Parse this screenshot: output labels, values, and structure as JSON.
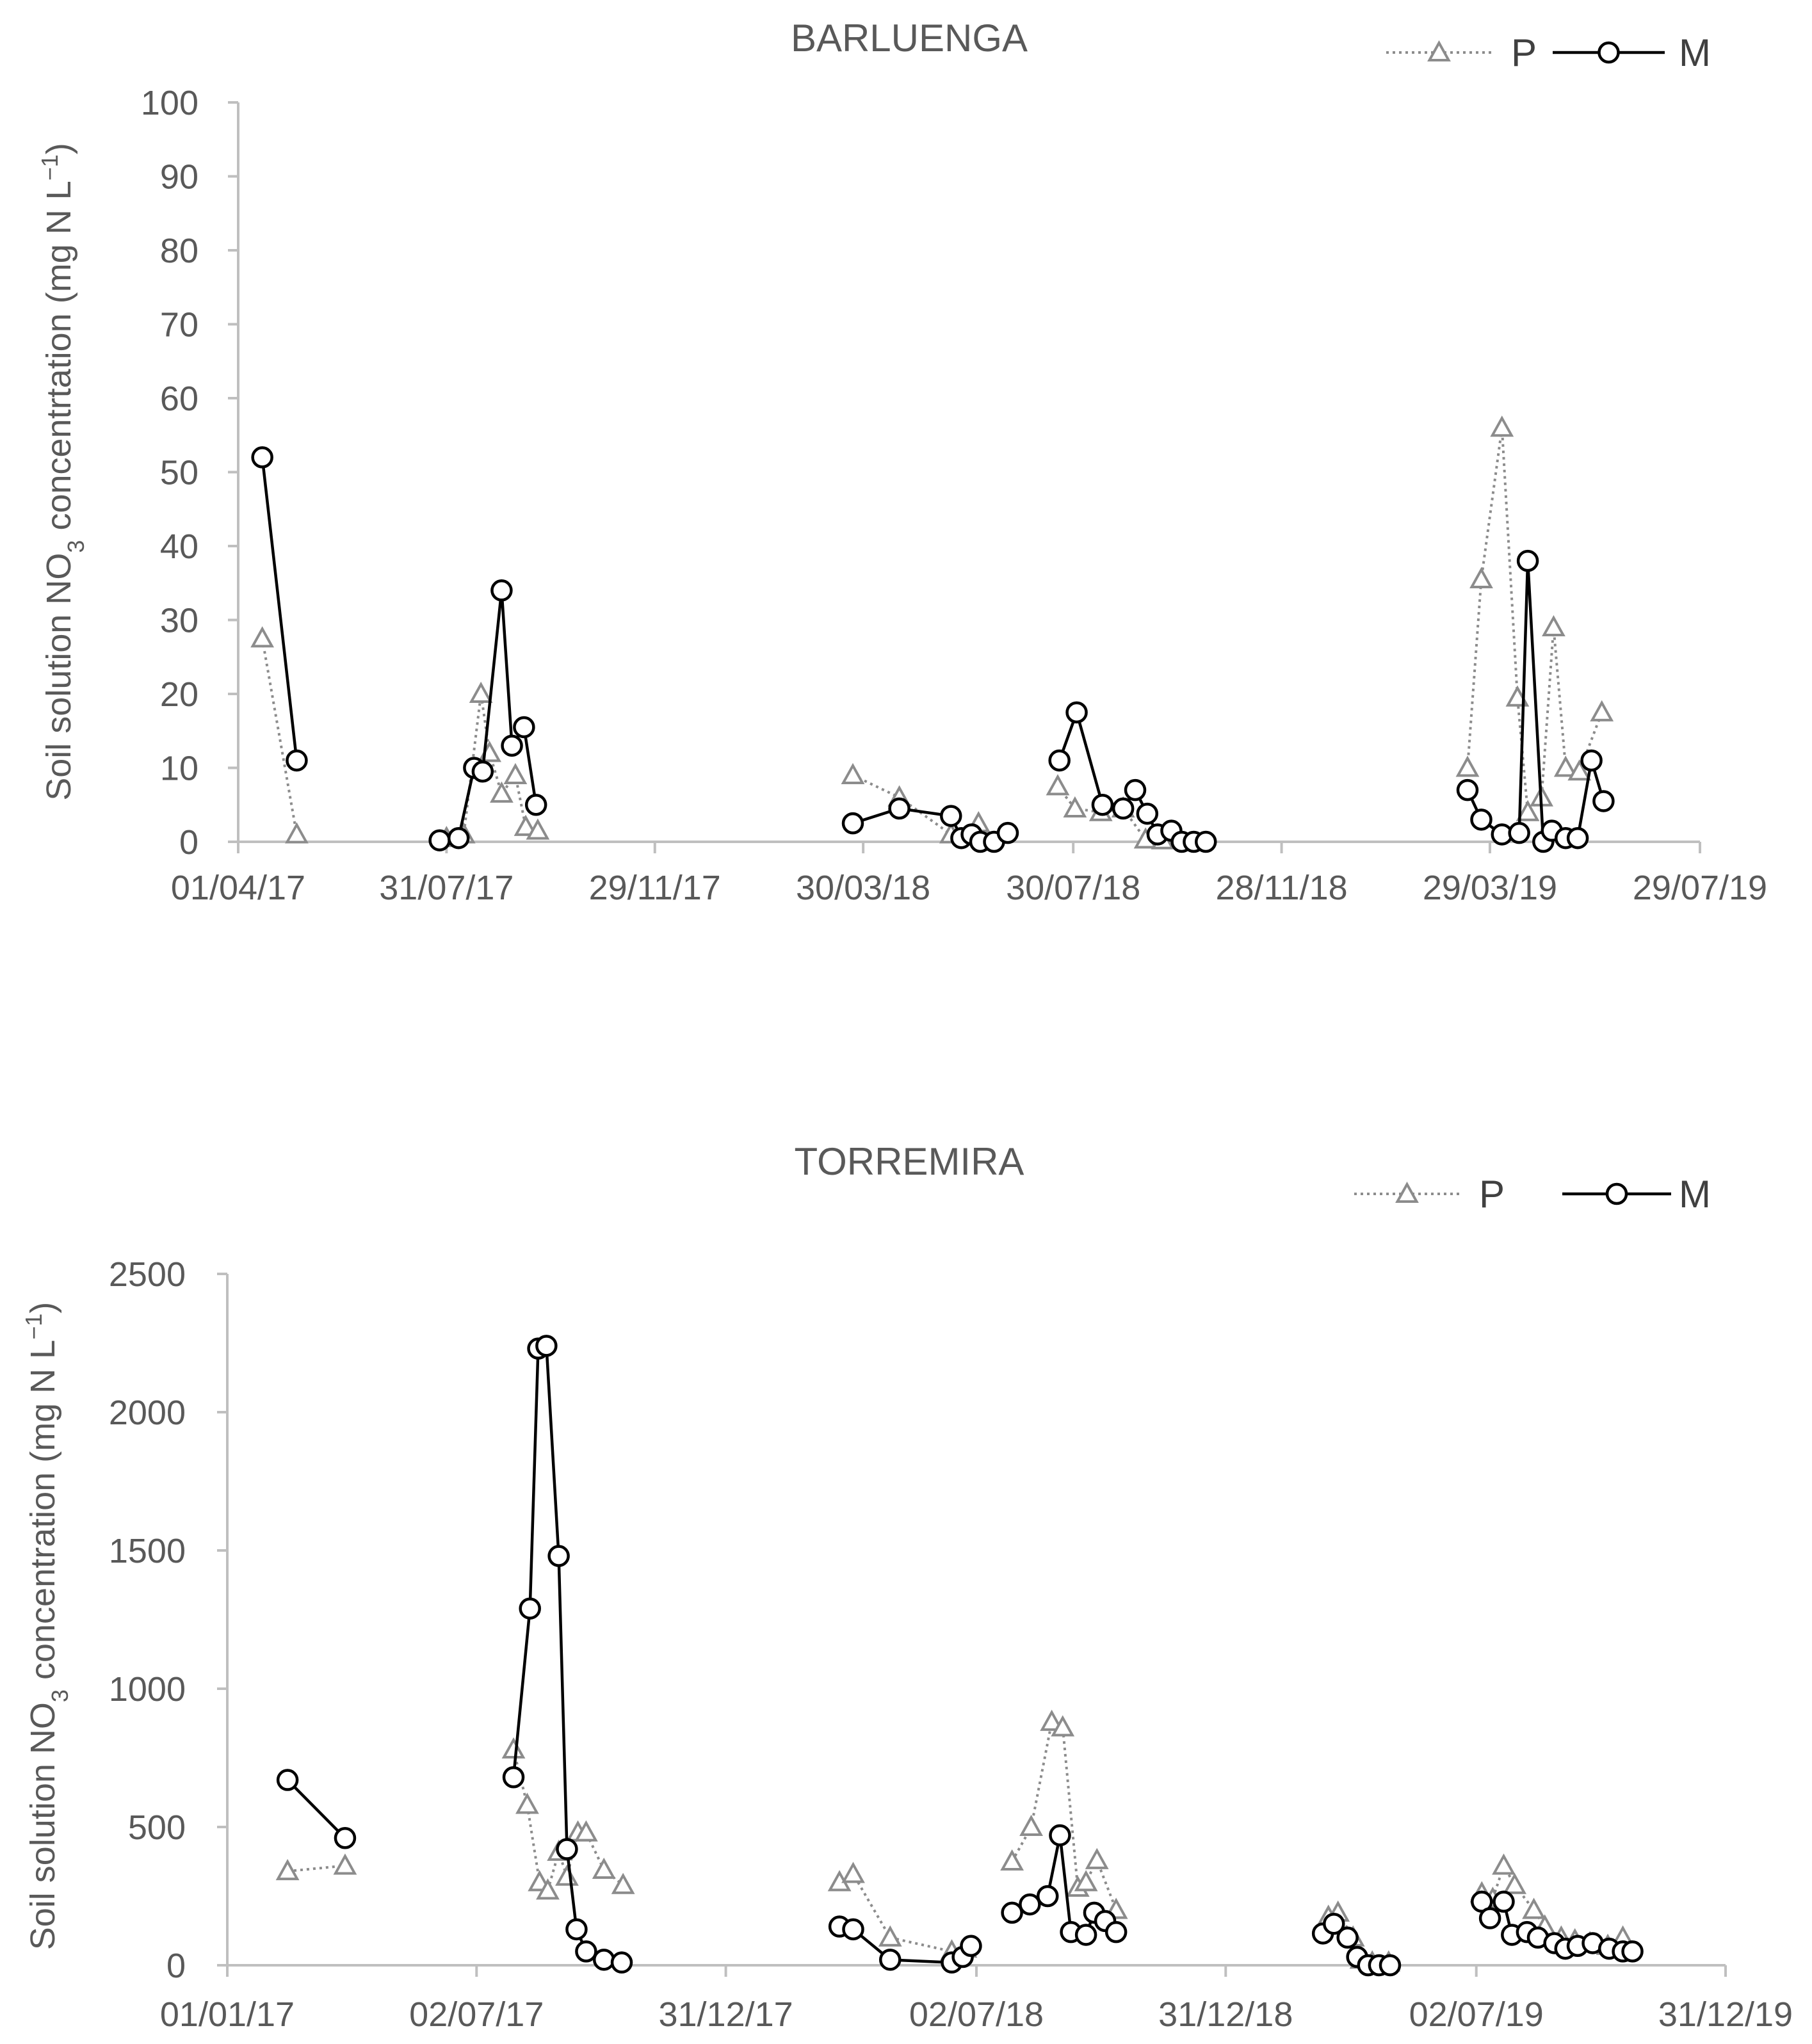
{
  "chart_data": [
    {
      "type": "line",
      "title": "BARLUENGA",
      "ylabel_parts": [
        "Soil solution NO",
        "3",
        " concentrtation (mg N L",
        "−1",
        ")"
      ],
      "ylim": [
        0,
        100
      ],
      "yticks": [
        0,
        10,
        20,
        30,
        40,
        50,
        60,
        70,
        80,
        90,
        100
      ],
      "xlim": [
        "2017-04-01",
        "2019-07-29"
      ],
      "xticks": [
        "2017-04-01",
        "2017-07-31",
        "2017-11-29",
        "2018-03-30",
        "2018-07-30",
        "2018-11-28",
        "2019-03-29",
        "2019-07-29"
      ],
      "xtick_labels": [
        "01/04/17",
        "31/07/17",
        "29/11/17",
        "30/03/18",
        "30/07/18",
        "28/11/18",
        "29/03/19",
        "29/07/19"
      ],
      "grid": false,
      "legend_position": "top-right",
      "series": [
        {
          "name": "P",
          "style": "dotted-triangle",
          "color": "#8c8c8c",
          "segments": [
            [
              [
                "2017-04-15",
                27.5
              ],
              [
                "2017-05-05",
                1
              ]
            ],
            [
              [
                "2017-07-31",
                0.5
              ],
              [
                "2017-08-10",
                1
              ],
              [
                "2017-08-20",
                20
              ],
              [
                "2017-08-25",
                12
              ],
              [
                "2017-09-01",
                6.5
              ],
              [
                "2017-09-09",
                9
              ],
              [
                "2017-09-15",
                2
              ],
              [
                "2017-09-22",
                1.5
              ]
            ],
            [
              [
                "2018-03-24",
                9
              ],
              [
                "2018-04-20",
                6
              ],
              [
                "2018-05-20",
                1
              ],
              [
                "2018-06-05",
                2.5
              ],
              [
                "2018-06-10",
                0
              ]
            ],
            [
              [
                "2018-07-21",
                7.5
              ],
              [
                "2018-07-31",
                4.5
              ],
              [
                "2018-08-15",
                4
              ],
              [
                "2018-08-28",
                4.5
              ],
              [
                "2018-09-10",
                0.3
              ],
              [
                "2018-09-20",
                0.2
              ]
            ],
            [
              [
                "2019-03-16",
                10
              ],
              [
                "2019-03-24",
                35.5
              ],
              [
                "2019-04-05",
                56
              ],
              [
                "2019-04-14",
                19.5
              ],
              [
                "2019-04-20",
                4
              ],
              [
                "2019-04-28",
                6
              ],
              [
                "2019-05-05",
                29
              ],
              [
                "2019-05-12",
                10
              ],
              [
                "2019-05-20",
                9.5
              ],
              [
                "2019-06-02",
                17.5
              ]
            ]
          ]
        },
        {
          "name": "M",
          "style": "solid-circle",
          "color": "#000000",
          "segments": [
            [
              [
                "2017-04-15",
                52
              ],
              [
                "2017-05-05",
                11
              ]
            ],
            [
              [
                "2017-07-27",
                0.2
              ],
              [
                "2017-08-07",
                0.5
              ],
              [
                "2017-08-16",
                10
              ],
              [
                "2017-08-21",
                9.5
              ],
              [
                "2017-09-01",
                34
              ],
              [
                "2017-09-07",
                13
              ],
              [
                "2017-09-14",
                15.5
              ],
              [
                "2017-09-21",
                5
              ]
            ],
            [
              [
                "2018-03-24",
                2.5
              ],
              [
                "2018-04-20",
                4.5
              ],
              [
                "2018-05-20",
                3.5
              ],
              [
                "2018-05-26",
                0.5
              ],
              [
                "2018-06-01",
                1
              ],
              [
                "2018-06-06",
                0
              ],
              [
                "2018-06-14",
                0
              ],
              [
                "2018-06-22",
                1.2
              ]
            ],
            [
              [
                "2018-07-22",
                11
              ],
              [
                "2018-08-01",
                17.5
              ],
              [
                "2018-08-16",
                5
              ],
              [
                "2018-08-28",
                4.5
              ],
              [
                "2018-09-04",
                7
              ],
              [
                "2018-09-11",
                3.8
              ],
              [
                "2018-09-17",
                1
              ],
              [
                "2018-09-25",
                1.5
              ],
              [
                "2018-10-01",
                0
              ],
              [
                "2018-10-08",
                0
              ],
              [
                "2018-10-15",
                0
              ]
            ],
            [
              [
                "2019-03-16",
                7
              ],
              [
                "2019-03-24",
                3
              ],
              [
                "2019-04-05",
                1
              ],
              [
                "2019-04-15",
                1.2
              ],
              [
                "2019-04-20",
                38
              ],
              [
                "2019-04-29",
                0
              ],
              [
                "2019-05-04",
                1.5
              ],
              [
                "2019-05-12",
                0.5
              ],
              [
                "2019-05-19",
                0.5
              ],
              [
                "2019-05-27",
                11
              ],
              [
                "2019-06-03",
                5.5
              ]
            ]
          ]
        }
      ]
    },
    {
      "type": "line",
      "title": "TORREMIRA",
      "ylabel_parts": [
        "Soil solution NO",
        "3",
        " concentration (mg N L",
        "−1",
        ")"
      ],
      "ylim": [
        0,
        2500
      ],
      "yticks": [
        0,
        500,
        1000,
        1500,
        2000,
        2500
      ],
      "xlim": [
        "2017-01-01",
        "2019-12-31"
      ],
      "xticks": [
        "2017-01-01",
        "2017-07-02",
        "2017-12-31",
        "2018-07-02",
        "2018-12-31",
        "2019-07-02",
        "2019-12-31"
      ],
      "xtick_labels": [
        "01/01/17",
        "02/07/17",
        "31/12/17",
        "02/07/18",
        "31/12/18",
        "02/07/19",
        "31/12/19"
      ],
      "grid": false,
      "legend_position": "top-right",
      "series": [
        {
          "name": "P",
          "style": "dotted-triangle",
          "color": "#8c8c8c",
          "segments": [
            [
              [
                "2017-02-14",
                340
              ],
              [
                "2017-03-28",
                360
              ]
            ],
            [
              [
                "2017-07-29",
                780
              ],
              [
                "2017-08-08",
                580
              ],
              [
                "2017-08-17",
                300
              ],
              [
                "2017-08-23",
                270
              ],
              [
                "2017-08-31",
                410
              ],
              [
                "2017-09-06",
                320
              ],
              [
                "2017-09-14",
                480
              ],
              [
                "2017-09-20",
                480
              ],
              [
                "2017-10-03",
                345
              ],
              [
                "2017-10-17",
                290
              ]
            ],
            [
              [
                "2018-03-24",
                300
              ],
              [
                "2018-04-03",
                330
              ],
              [
                "2018-04-30",
                100
              ],
              [
                "2018-06-14",
                50
              ],
              [
                "2018-06-24",
                60
              ]
            ],
            [
              [
                "2018-07-28",
                375
              ],
              [
                "2018-08-11",
                500
              ],
              [
                "2018-08-26",
                880
              ],
              [
                "2018-09-03",
                860
              ],
              [
                "2018-09-14",
                280
              ],
              [
                "2018-09-20",
                300
              ],
              [
                "2018-09-28",
                380
              ],
              [
                "2018-10-12",
                200
              ]
            ],
            [
              [
                "2019-03-16",
                175
              ],
              [
                "2019-03-23",
                190
              ],
              [
                "2019-04-03",
                100
              ],
              [
                "2019-04-09",
                20
              ],
              [
                "2019-04-17",
                10
              ],
              [
                "2019-04-29",
                10
              ]
            ],
            [
              [
                "2019-07-06",
                260
              ],
              [
                "2019-07-14",
                240
              ],
              [
                "2019-07-22",
                360
              ],
              [
                "2019-07-30",
                290
              ],
              [
                "2019-08-13",
                200
              ],
              [
                "2019-08-21",
                140
              ],
              [
                "2019-09-02",
                100
              ],
              [
                "2019-09-12",
                90
              ],
              [
                "2019-09-23",
                80
              ],
              [
                "2019-10-06",
                70
              ],
              [
                "2019-10-17",
                100
              ]
            ]
          ]
        },
        {
          "name": "M",
          "style": "solid-circle",
          "color": "#000000",
          "segments": [
            [
              [
                "2017-02-14",
                670
              ],
              [
                "2017-03-28",
                460
              ]
            ],
            [
              [
                "2017-07-29",
                680
              ],
              [
                "2017-08-10",
                1290
              ],
              [
                "2017-08-16",
                2230
              ],
              [
                "2017-08-22",
                2240
              ],
              [
                "2017-08-31",
                1480
              ],
              [
                "2017-09-06",
                420
              ],
              [
                "2017-09-13",
                130
              ],
              [
                "2017-09-20",
                50
              ],
              [
                "2017-10-03",
                20
              ],
              [
                "2017-10-16",
                10
              ]
            ],
            [
              [
                "2018-03-24",
                140
              ],
              [
                "2018-04-03",
                130
              ],
              [
                "2018-04-30",
                20
              ],
              [
                "2018-06-14",
                10
              ],
              [
                "2018-06-22",
                30
              ],
              [
                "2018-06-28",
                70
              ]
            ],
            [
              [
                "2018-07-28",
                190
              ],
              [
                "2018-08-10",
                220
              ],
              [
                "2018-08-23",
                250
              ],
              [
                "2018-09-01",
                470
              ],
              [
                "2018-09-09",
                120
              ],
              [
                "2018-09-20",
                110
              ],
              [
                "2018-09-26",
                190
              ],
              [
                "2018-10-04",
                160
              ],
              [
                "2018-10-12",
                120
              ]
            ],
            [
              [
                "2019-03-12",
                115
              ],
              [
                "2019-03-20",
                150
              ],
              [
                "2019-03-30",
                100
              ],
              [
                "2019-04-06",
                30
              ],
              [
                "2019-04-14",
                0
              ],
              [
                "2019-04-22",
                0
              ],
              [
                "2019-04-30",
                0
              ]
            ],
            [
              [
                "2019-07-06",
                230
              ],
              [
                "2019-07-12",
                170
              ],
              [
                "2019-07-22",
                230
              ],
              [
                "2019-07-28",
                110
              ],
              [
                "2019-08-08",
                120
              ],
              [
                "2019-08-16",
                100
              ],
              [
                "2019-08-28",
                80
              ],
              [
                "2019-09-05",
                60
              ],
              [
                "2019-09-14",
                70
              ],
              [
                "2019-09-25",
                80
              ],
              [
                "2019-10-07",
                60
              ],
              [
                "2019-10-17",
                50
              ],
              [
                "2019-10-24",
                50
              ]
            ]
          ]
        }
      ]
    }
  ]
}
